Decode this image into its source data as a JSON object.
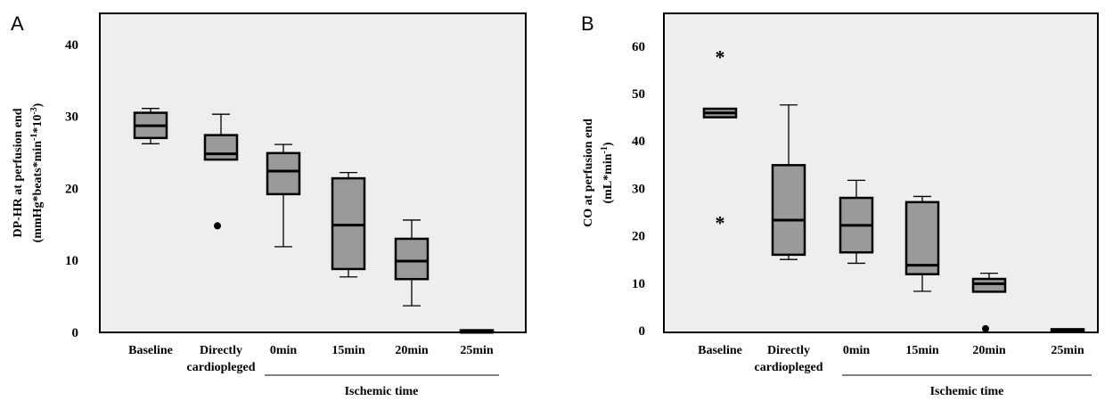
{
  "chart_data": [
    {
      "type": "box",
      "panel_label": "A",
      "ylabel_line1": "DP-HR at perfusion end",
      "ylabel_line2": "(mmHg*beats*min",
      "ylabel_sup1": "-1",
      "ylabel_mid": "*10",
      "ylabel_sup2": "-3",
      "ylabel_end": ")",
      "ylim": [
        0,
        45
      ],
      "yticks": [
        "0",
        "10",
        "20",
        "30",
        "40"
      ],
      "group_label": "Ischemic time",
      "categories": [
        {
          "line1": "Baseline",
          "line2": ""
        },
        {
          "line1": "Directly",
          "line2": "cardiopleged"
        },
        {
          "line1": "0min",
          "line2": ""
        },
        {
          "line1": "15min",
          "line2": ""
        },
        {
          "line1": "20min",
          "line2": ""
        },
        {
          "line1": "25min",
          "line2": ""
        }
      ],
      "boxes": [
        {
          "low": 26.2,
          "q1": 27.0,
          "median": 28.7,
          "q3": 30.5,
          "high": 31.1
        },
        {
          "low": 24.0,
          "q1": 24.0,
          "median": 24.8,
          "q3": 27.4,
          "high": 30.3
        },
        {
          "low": 11.9,
          "q1": 19.2,
          "median": 22.4,
          "q3": 24.9,
          "high": 26.1
        },
        {
          "low": 7.7,
          "q1": 8.8,
          "median": 14.9,
          "q3": 21.4,
          "high": 22.2
        },
        {
          "low": 3.7,
          "q1": 7.4,
          "median": 9.9,
          "q3": 13.0,
          "high": 15.6
        },
        {
          "low": 0.0,
          "q1": 0.0,
          "median": 0.0,
          "q3": 0.3,
          "high": 0.3
        }
      ],
      "outliers": [
        {
          "category": 1,
          "value": 14.8,
          "marker": "dot"
        }
      ]
    },
    {
      "type": "box",
      "panel_label": "B",
      "ylabel_line1": "CO at perfusion end",
      "ylabel_line2": "(mL*min",
      "ylabel_sup1": "-1",
      "ylabel_mid": "",
      "ylabel_sup2": "",
      "ylabel_end": ")",
      "ylim": [
        0,
        67
      ],
      "yticks": [
        "0",
        "10",
        "20",
        "30",
        "40",
        "50",
        "60"
      ],
      "group_label": "Ischemic time",
      "categories": [
        {
          "line1": "Baseline",
          "line2": ""
        },
        {
          "line1": "Directly",
          "line2": "cardiopleged"
        },
        {
          "line1": "0min",
          "line2": ""
        },
        {
          "line1": "15min",
          "line2": ""
        },
        {
          "line1": "20min",
          "line2": ""
        },
        {
          "line1": "25min",
          "line2": ""
        }
      ],
      "boxes": [
        {
          "low": 45.0,
          "q1": 45.0,
          "median": 45.9,
          "q3": 46.8,
          "high": 46.8
        },
        {
          "low": 15.0,
          "q1": 16.0,
          "median": 23.3,
          "q3": 34.9,
          "high": 47.6
        },
        {
          "low": 14.2,
          "q1": 16.5,
          "median": 22.2,
          "q3": 28.0,
          "high": 31.7
        },
        {
          "low": 8.3,
          "q1": 11.9,
          "median": 13.8,
          "q3": 27.1,
          "high": 28.3
        },
        {
          "low": 8.2,
          "q1": 8.2,
          "median": 9.9,
          "q3": 10.9,
          "high": 12.1
        },
        {
          "low": 0.0,
          "q1": 0.0,
          "median": 0.0,
          "q3": 0.3,
          "high": 0.3
        }
      ],
      "outliers": [
        {
          "category": 0,
          "value": 58.0,
          "marker": "star"
        },
        {
          "category": 0,
          "value": 23.0,
          "marker": "star"
        },
        {
          "category": 4,
          "value": 0.4,
          "marker": "dot"
        }
      ]
    }
  ]
}
